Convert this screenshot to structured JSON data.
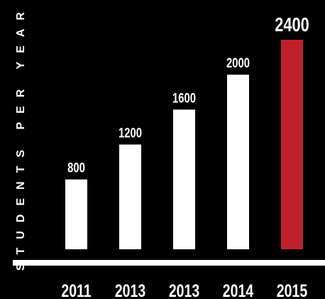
{
  "chart_data": {
    "type": "bar",
    "title": "",
    "xlabel": "",
    "ylabel": "STUDENTS PER YEAR",
    "categories": [
      "2011",
      "2013",
      "2013",
      "2014",
      "2015"
    ],
    "values": [
      800,
      1200,
      1600,
      2000,
      2400
    ],
    "data_labels": [
      "800",
      "1200",
      "1600",
      "2000",
      "2400"
    ],
    "ylim": [
      0,
      2400
    ],
    "grid": false,
    "legend": "none",
    "highlight_index": 4,
    "colors": {
      "background": "#000000",
      "bar": "#ffffff",
      "highlight_bar": "#c0202e",
      "text": "#ffffff",
      "axis": "#ffffff"
    }
  }
}
